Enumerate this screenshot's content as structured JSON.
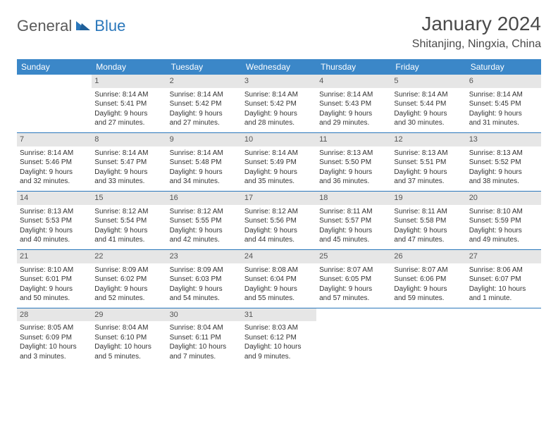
{
  "brand": {
    "part1": "General",
    "part2": "Blue"
  },
  "title": "January 2024",
  "location": "Shitanjing, Ningxia, China",
  "colors": {
    "header_bg": "#3b87c8",
    "header_text": "#ffffff",
    "daynum_bg": "#e6e6e6",
    "sep": "#2a77bb",
    "brand_blue": "#2a77bb",
    "brand_gray": "#5a5a5a"
  },
  "weekdays": [
    "Sunday",
    "Monday",
    "Tuesday",
    "Wednesday",
    "Thursday",
    "Friday",
    "Saturday"
  ],
  "weeks": [
    [
      null,
      {
        "n": "1",
        "sr": "Sunrise: 8:14 AM",
        "ss": "Sunset: 5:41 PM",
        "d1": "Daylight: 9 hours",
        "d2": "and 27 minutes."
      },
      {
        "n": "2",
        "sr": "Sunrise: 8:14 AM",
        "ss": "Sunset: 5:42 PM",
        "d1": "Daylight: 9 hours",
        "d2": "and 27 minutes."
      },
      {
        "n": "3",
        "sr": "Sunrise: 8:14 AM",
        "ss": "Sunset: 5:42 PM",
        "d1": "Daylight: 9 hours",
        "d2": "and 28 minutes."
      },
      {
        "n": "4",
        "sr": "Sunrise: 8:14 AM",
        "ss": "Sunset: 5:43 PM",
        "d1": "Daylight: 9 hours",
        "d2": "and 29 minutes."
      },
      {
        "n": "5",
        "sr": "Sunrise: 8:14 AM",
        "ss": "Sunset: 5:44 PM",
        "d1": "Daylight: 9 hours",
        "d2": "and 30 minutes."
      },
      {
        "n": "6",
        "sr": "Sunrise: 8:14 AM",
        "ss": "Sunset: 5:45 PM",
        "d1": "Daylight: 9 hours",
        "d2": "and 31 minutes."
      }
    ],
    [
      {
        "n": "7",
        "sr": "Sunrise: 8:14 AM",
        "ss": "Sunset: 5:46 PM",
        "d1": "Daylight: 9 hours",
        "d2": "and 32 minutes."
      },
      {
        "n": "8",
        "sr": "Sunrise: 8:14 AM",
        "ss": "Sunset: 5:47 PM",
        "d1": "Daylight: 9 hours",
        "d2": "and 33 minutes."
      },
      {
        "n": "9",
        "sr": "Sunrise: 8:14 AM",
        "ss": "Sunset: 5:48 PM",
        "d1": "Daylight: 9 hours",
        "d2": "and 34 minutes."
      },
      {
        "n": "10",
        "sr": "Sunrise: 8:14 AM",
        "ss": "Sunset: 5:49 PM",
        "d1": "Daylight: 9 hours",
        "d2": "and 35 minutes."
      },
      {
        "n": "11",
        "sr": "Sunrise: 8:13 AM",
        "ss": "Sunset: 5:50 PM",
        "d1": "Daylight: 9 hours",
        "d2": "and 36 minutes."
      },
      {
        "n": "12",
        "sr": "Sunrise: 8:13 AM",
        "ss": "Sunset: 5:51 PM",
        "d1": "Daylight: 9 hours",
        "d2": "and 37 minutes."
      },
      {
        "n": "13",
        "sr": "Sunrise: 8:13 AM",
        "ss": "Sunset: 5:52 PM",
        "d1": "Daylight: 9 hours",
        "d2": "and 38 minutes."
      }
    ],
    [
      {
        "n": "14",
        "sr": "Sunrise: 8:13 AM",
        "ss": "Sunset: 5:53 PM",
        "d1": "Daylight: 9 hours",
        "d2": "and 40 minutes."
      },
      {
        "n": "15",
        "sr": "Sunrise: 8:12 AM",
        "ss": "Sunset: 5:54 PM",
        "d1": "Daylight: 9 hours",
        "d2": "and 41 minutes."
      },
      {
        "n": "16",
        "sr": "Sunrise: 8:12 AM",
        "ss": "Sunset: 5:55 PM",
        "d1": "Daylight: 9 hours",
        "d2": "and 42 minutes."
      },
      {
        "n": "17",
        "sr": "Sunrise: 8:12 AM",
        "ss": "Sunset: 5:56 PM",
        "d1": "Daylight: 9 hours",
        "d2": "and 44 minutes."
      },
      {
        "n": "18",
        "sr": "Sunrise: 8:11 AM",
        "ss": "Sunset: 5:57 PM",
        "d1": "Daylight: 9 hours",
        "d2": "and 45 minutes."
      },
      {
        "n": "19",
        "sr": "Sunrise: 8:11 AM",
        "ss": "Sunset: 5:58 PM",
        "d1": "Daylight: 9 hours",
        "d2": "and 47 minutes."
      },
      {
        "n": "20",
        "sr": "Sunrise: 8:10 AM",
        "ss": "Sunset: 5:59 PM",
        "d1": "Daylight: 9 hours",
        "d2": "and 49 minutes."
      }
    ],
    [
      {
        "n": "21",
        "sr": "Sunrise: 8:10 AM",
        "ss": "Sunset: 6:01 PM",
        "d1": "Daylight: 9 hours",
        "d2": "and 50 minutes."
      },
      {
        "n": "22",
        "sr": "Sunrise: 8:09 AM",
        "ss": "Sunset: 6:02 PM",
        "d1": "Daylight: 9 hours",
        "d2": "and 52 minutes."
      },
      {
        "n": "23",
        "sr": "Sunrise: 8:09 AM",
        "ss": "Sunset: 6:03 PM",
        "d1": "Daylight: 9 hours",
        "d2": "and 54 minutes."
      },
      {
        "n": "24",
        "sr": "Sunrise: 8:08 AM",
        "ss": "Sunset: 6:04 PM",
        "d1": "Daylight: 9 hours",
        "d2": "and 55 minutes."
      },
      {
        "n": "25",
        "sr": "Sunrise: 8:07 AM",
        "ss": "Sunset: 6:05 PM",
        "d1": "Daylight: 9 hours",
        "d2": "and 57 minutes."
      },
      {
        "n": "26",
        "sr": "Sunrise: 8:07 AM",
        "ss": "Sunset: 6:06 PM",
        "d1": "Daylight: 9 hours",
        "d2": "and 59 minutes."
      },
      {
        "n": "27",
        "sr": "Sunrise: 8:06 AM",
        "ss": "Sunset: 6:07 PM",
        "d1": "Daylight: 10 hours",
        "d2": "and 1 minute."
      }
    ],
    [
      {
        "n": "28",
        "sr": "Sunrise: 8:05 AM",
        "ss": "Sunset: 6:09 PM",
        "d1": "Daylight: 10 hours",
        "d2": "and 3 minutes."
      },
      {
        "n": "29",
        "sr": "Sunrise: 8:04 AM",
        "ss": "Sunset: 6:10 PM",
        "d1": "Daylight: 10 hours",
        "d2": "and 5 minutes."
      },
      {
        "n": "30",
        "sr": "Sunrise: 8:04 AM",
        "ss": "Sunset: 6:11 PM",
        "d1": "Daylight: 10 hours",
        "d2": "and 7 minutes."
      },
      {
        "n": "31",
        "sr": "Sunrise: 8:03 AM",
        "ss": "Sunset: 6:12 PM",
        "d1": "Daylight: 10 hours",
        "d2": "and 9 minutes."
      },
      null,
      null,
      null
    ]
  ]
}
